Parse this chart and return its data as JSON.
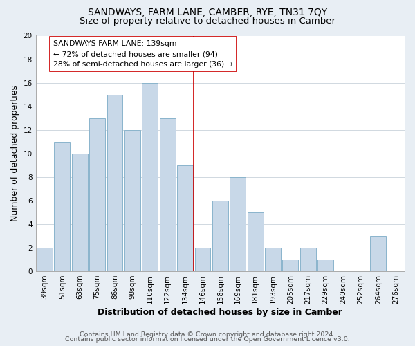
{
  "title": "SANDWAYS, FARM LANE, CAMBER, RYE, TN31 7QY",
  "subtitle": "Size of property relative to detached houses in Camber",
  "xlabel": "Distribution of detached houses by size in Camber",
  "ylabel": "Number of detached properties",
  "bar_labels": [
    "39sqm",
    "51sqm",
    "63sqm",
    "75sqm",
    "86sqm",
    "98sqm",
    "110sqm",
    "122sqm",
    "134sqm",
    "146sqm",
    "158sqm",
    "169sqm",
    "181sqm",
    "193sqm",
    "205sqm",
    "217sqm",
    "229sqm",
    "240sqm",
    "252sqm",
    "264sqm",
    "276sqm"
  ],
  "bar_values": [
    2,
    11,
    10,
    13,
    15,
    12,
    16,
    13,
    9,
    2,
    6,
    8,
    5,
    2,
    1,
    2,
    1,
    0,
    0,
    3,
    0
  ],
  "bar_color": "#c8d8e8",
  "bar_edgecolor": "#8ab4cc",
  "vline_x": 8.5,
  "vline_color": "#cc0000",
  "annotation_title": "SANDWAYS FARM LANE: 139sqm",
  "annotation_line1": "← 72% of detached houses are smaller (94)",
  "annotation_line2": "28% of semi-detached houses are larger (36) →",
  "annotation_box_color": "#ffffff",
  "annotation_box_edgecolor": "#cc0000",
  "ylim": [
    0,
    20
  ],
  "yticks": [
    0,
    2,
    4,
    6,
    8,
    10,
    12,
    14,
    16,
    18,
    20
  ],
  "footer_line1": "Contains HM Land Registry data © Crown copyright and database right 2024.",
  "footer_line2": "Contains public sector information licensed under the Open Government Licence v3.0.",
  "background_color": "#e8eef4",
  "plot_background_color": "#ffffff",
  "grid_color": "#d0d8e0",
  "title_fontsize": 10,
  "subtitle_fontsize": 9.5,
  "axis_label_fontsize": 9,
  "tick_fontsize": 7.5,
  "footer_fontsize": 6.8
}
